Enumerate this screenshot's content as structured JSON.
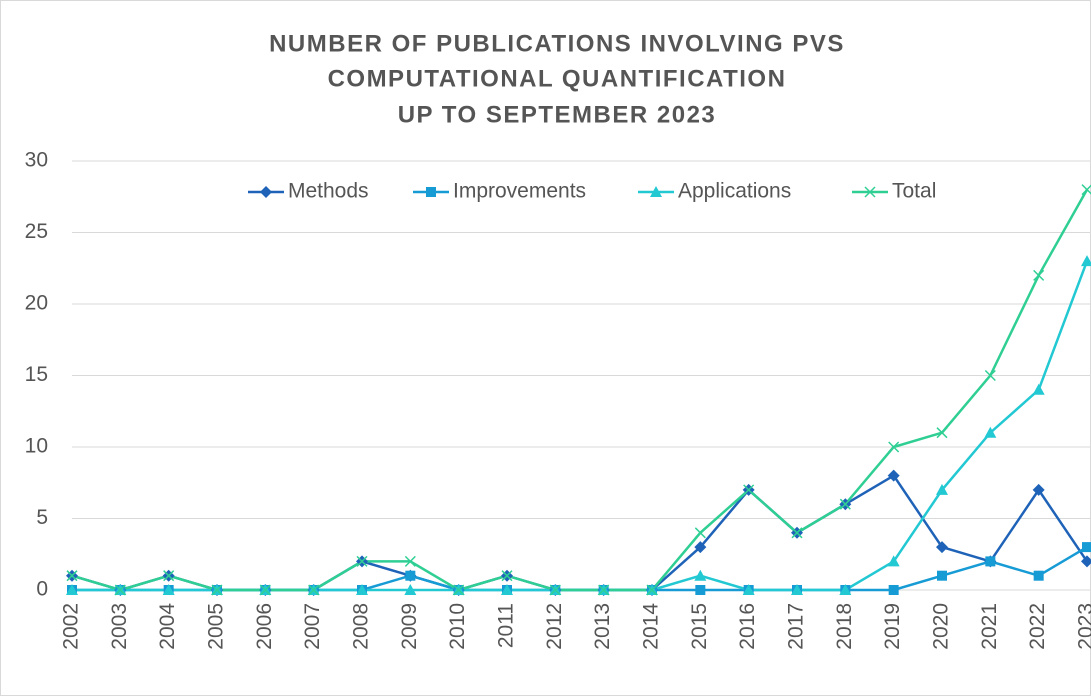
{
  "chart_data": {
    "type": "line",
    "title": [
      "NUMBER OF PUBLICATIONS INVOLVING PVS",
      "COMPUTATIONAL QUANTIFICATION",
      "UP TO SEPTEMBER 2023"
    ],
    "categories": [
      "2002",
      "2003",
      "2004",
      "2005",
      "2006",
      "2007",
      "2008",
      "2009",
      "2010",
      "2011",
      "2012",
      "2013",
      "2014",
      "2015",
      "2016",
      "2017",
      "2018",
      "2019",
      "2020",
      "2021",
      "2022",
      "2023"
    ],
    "series": [
      {
        "name": "Methods",
        "color": "#1f63b8",
        "marker": "diamond",
        "values": [
          1,
          0,
          1,
          0,
          0,
          0,
          2,
          1,
          0,
          1,
          0,
          0,
          0,
          3,
          7,
          4,
          6,
          8,
          3,
          2,
          7,
          2
        ]
      },
      {
        "name": "Improvements",
        "color": "#169bd5",
        "marker": "square",
        "values": [
          0,
          0,
          0,
          0,
          0,
          0,
          0,
          1,
          0,
          0,
          0,
          0,
          0,
          0,
          0,
          0,
          0,
          0,
          1,
          2,
          1,
          3
        ]
      },
      {
        "name": "Applications",
        "color": "#22c8d2",
        "marker": "triangle",
        "values": [
          0,
          0,
          0,
          0,
          0,
          0,
          0,
          0,
          0,
          0,
          0,
          0,
          0,
          1,
          0,
          0,
          0,
          2,
          7,
          11,
          14,
          23
        ]
      },
      {
        "name": "Total",
        "color": "#2fcf94",
        "marker": "x",
        "values": [
          1,
          0,
          1,
          0,
          0,
          0,
          2,
          2,
          0,
          1,
          0,
          0,
          0,
          4,
          7,
          4,
          6,
          10,
          11,
          15,
          22,
          28
        ]
      }
    ],
    "ylim": [
      0,
      30
    ],
    "yticks": [
      0,
      5,
      10,
      15,
      20,
      25,
      30
    ],
    "grid": true,
    "legend": "top"
  }
}
